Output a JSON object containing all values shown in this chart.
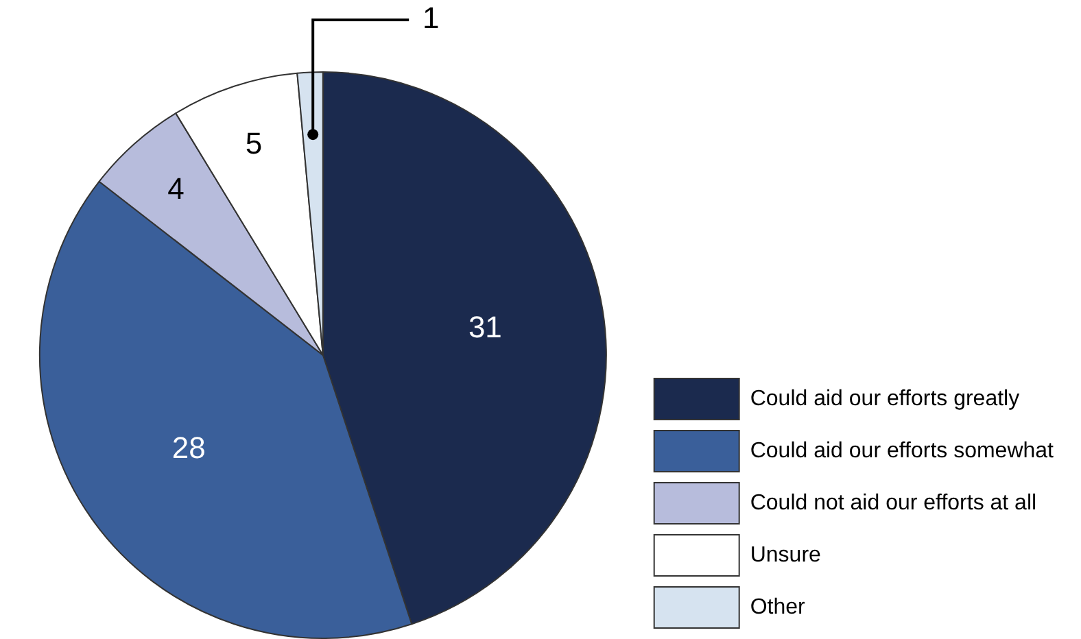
{
  "chart_data": {
    "type": "pie",
    "categories": [
      "Could aid our efforts greatly",
      "Could aid our efforts somewhat",
      "Could not aid our efforts at all",
      "Unsure",
      "Other"
    ],
    "values": [
      31,
      28,
      4,
      5,
      1
    ],
    "colors": [
      "#1b2a4e",
      "#3a5f9a",
      "#b7bcdc",
      "#ffffff",
      "#d6e3f0"
    ],
    "data_labels": true,
    "legend": "bottom right"
  }
}
